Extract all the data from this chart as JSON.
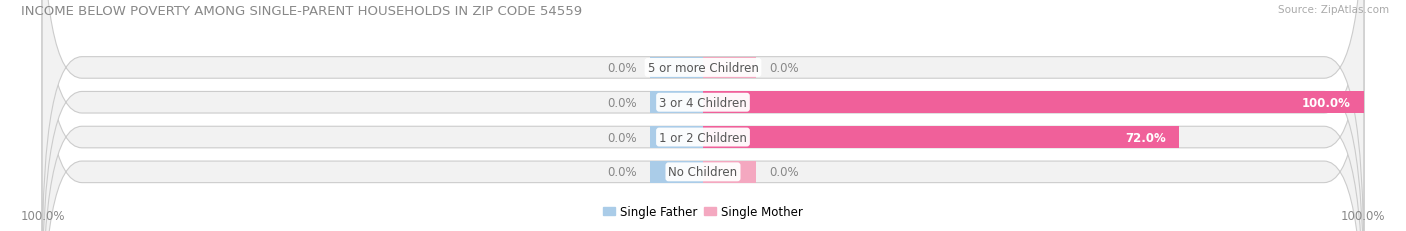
{
  "title": "INCOME BELOW POVERTY AMONG SINGLE-PARENT HOUSEHOLDS IN ZIP CODE 54559",
  "source": "Source: ZipAtlas.com",
  "categories": [
    "No Children",
    "1 or 2 Children",
    "3 or 4 Children",
    "5 or more Children"
  ],
  "single_father": [
    0.0,
    0.0,
    0.0,
    0.0
  ],
  "single_mother": [
    0.0,
    72.0,
    100.0,
    0.0
  ],
  "father_color": "#aacce8",
  "mother_color_low": "#f4a8c0",
  "mother_color_high": "#f0609a",
  "bar_bg_color": "#f2f2f2",
  "bar_edge_color": "#cccccc",
  "title_color": "#888888",
  "value_label_color": "#888888",
  "label_color": "#555555",
  "source_color": "#aaaaaa",
  "legend_father_color": "#aacce8",
  "legend_mother_color": "#f4a8c0",
  "max_value": 100.0,
  "figsize": [
    14.06,
    2.32
  ],
  "dpi": 100
}
